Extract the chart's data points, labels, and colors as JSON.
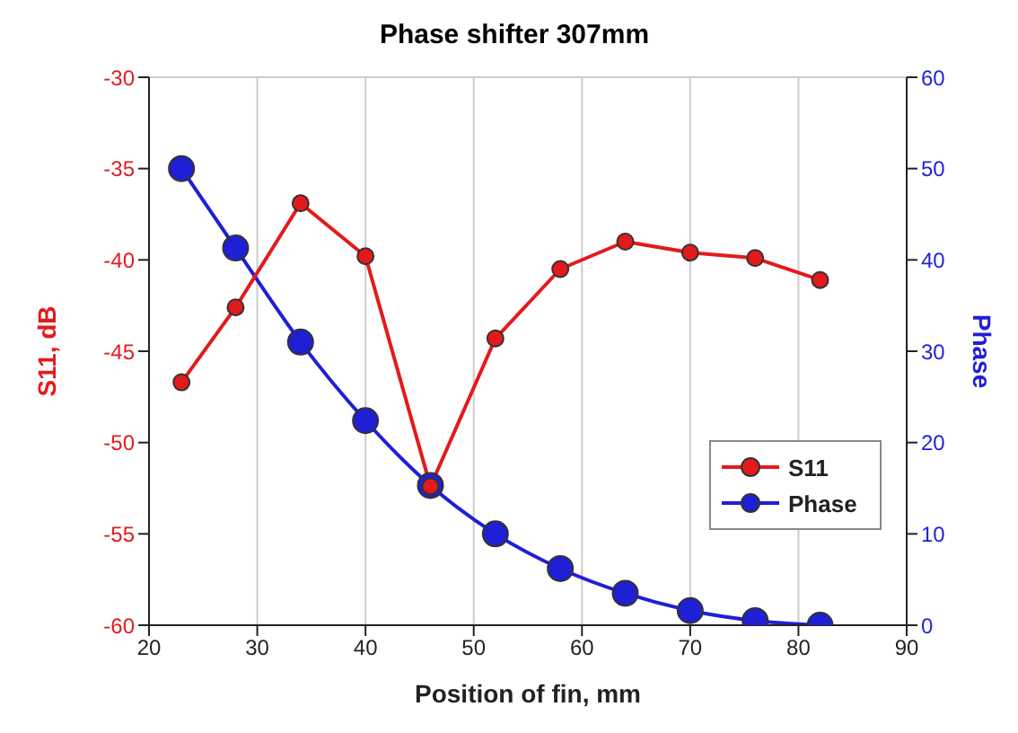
{
  "chart_data": {
    "type": "line",
    "title": "Phase shifter 307mm",
    "xlabel": "Position of fin, mm",
    "ylabel": "S11, dB",
    "y2label": "Phase",
    "x": [
      23,
      28,
      34,
      40,
      46,
      52,
      58,
      64,
      70,
      76,
      82
    ],
    "series": [
      {
        "name": "S11",
        "color": "#e31a1c",
        "values": [
          -46.7,
          -42.6,
          -36.9,
          -39.8,
          -52.4,
          -44.3,
          -40.5,
          -39.0,
          -39.6,
          -39.9,
          -41.1
        ]
      },
      {
        "name": "Phase",
        "color": "#1f1fd6",
        "axis": "y2",
        "values": [
          50,
          41.3,
          31,
          22.4,
          15.3,
          10,
          6.2,
          3.5,
          1.6,
          0.5,
          0
        ]
      }
    ],
    "xlim": [
      20,
      90
    ],
    "xticks": [
      20,
      30,
      40,
      50,
      60,
      70,
      80,
      90
    ],
    "ylim": [
      -60,
      -30
    ],
    "yticks": [
      -60,
      -55,
      -50,
      -45,
      -40,
      -35,
      -30
    ],
    "y2lim": [
      0,
      60
    ],
    "y2ticks": [
      0,
      10,
      20,
      30,
      40,
      50,
      60
    ],
    "grid": true,
    "legend": "bottom right",
    "marker": "circle",
    "line_style": "solid"
  }
}
